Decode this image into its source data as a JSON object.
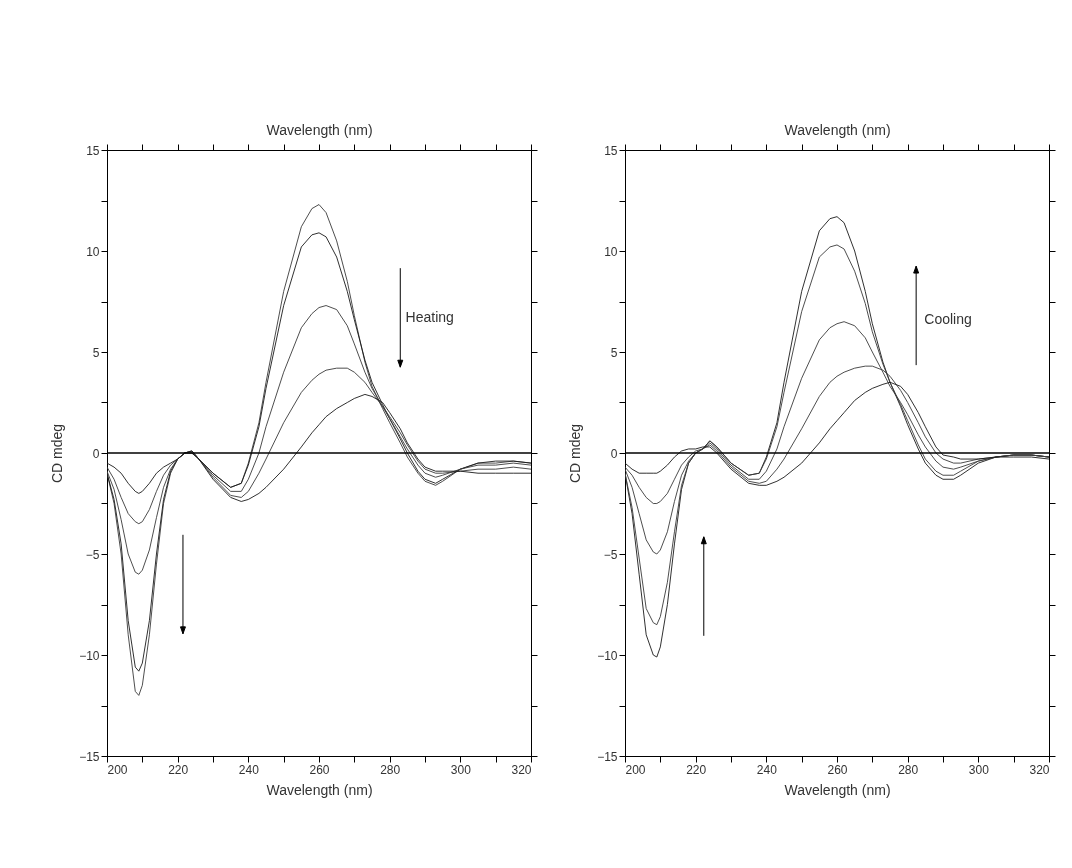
{
  "chart_data": [
    {
      "type": "line",
      "xlabel": "Wavelength (nm)",
      "x2label": "Wavelength (nm)",
      "ylabel": "CD mdeg",
      "xlim": [
        200,
        320
      ],
      "ylim": [
        -15,
        15
      ],
      "xticks": [
        200,
        {
          "value": 210,
          "label": null
        },
        220,
        {
          "value": 230,
          "label": null
        },
        240,
        {
          "value": 250,
          "label": null
        },
        260,
        {
          "value": 270,
          "label": null
        },
        280,
        {
          "value": 290,
          "label": null
        },
        300,
        {
          "value": 310,
          "label": null
        },
        320
      ],
      "yticks": [
        -15,
        {
          "value": -12.5,
          "label": null
        },
        -10,
        {
          "value": -7.5,
          "label": null
        },
        -5,
        {
          "value": -2.5,
          "label": null
        },
        0,
        {
          "value": 2.5,
          "label": null
        },
        5,
        {
          "value": 7.5,
          "label": null
        },
        10,
        {
          "value": 12.5,
          "label": null
        },
        15
      ],
      "x": [
        200,
        202,
        204,
        206,
        208,
        209,
        210,
        212,
        214,
        216,
        218,
        220,
        222,
        224,
        226,
        230,
        235,
        238,
        240,
        243,
        245,
        250,
        255,
        258,
        260,
        262,
        265,
        268,
        270,
        273,
        275,
        278,
        280,
        283,
        285,
        288,
        290,
        293,
        295,
        300,
        305,
        310,
        315,
        320
      ],
      "series": [
        {
          "color": "#3a3a3a",
          "values": [
            -1,
            -2.5,
            -5,
            -9,
            -11.8,
            -12,
            -11.5,
            -9,
            -5.5,
            -2.5,
            -1,
            -0.3,
            0,
            0,
            -0.3,
            -1,
            -1.7,
            -1.5,
            -0.5,
            1.5,
            3.5,
            8,
            11.2,
            12.1,
            12.3,
            11.9,
            10.5,
            8.5,
            6.8,
            4.5,
            3.3,
            2.2,
            1.5,
            0.5,
            -0.2,
            -1,
            -1.4,
            -1.6,
            -1.4,
            -0.8,
            -0.5,
            -0.5,
            -0.4,
            -0.5
          ]
        },
        {
          "color": "#1a1a1a",
          "values": [
            -1,
            -2.3,
            -4.5,
            -8.3,
            -10.6,
            -10.8,
            -10.4,
            -8.3,
            -5,
            -2.3,
            -0.9,
            -0.3,
            0,
            0,
            -0.3,
            -1,
            -1.7,
            -1.5,
            -0.6,
            1.3,
            3.2,
            7.3,
            10.2,
            10.8,
            10.9,
            10.7,
            9.7,
            8,
            6.6,
            4.6,
            3.5,
            2.4,
            1.7,
            0.7,
            0,
            -0.9,
            -1.3,
            -1.5,
            -1.3,
            -0.8,
            -0.5,
            -0.4,
            -0.4,
            -0.5
          ]
        },
        {
          "color": "#3a3a3a",
          "values": [
            -0.9,
            -1.8,
            -3.3,
            -5,
            -5.9,
            -6,
            -5.8,
            -4.8,
            -3.2,
            -1.7,
            -0.8,
            -0.3,
            0,
            0.1,
            -0.3,
            -1.1,
            -1.9,
            -1.9,
            -1.3,
            0,
            1.3,
            4,
            6.2,
            6.9,
            7.2,
            7.3,
            7.1,
            6.3,
            5.4,
            4,
            3.2,
            2.3,
            1.7,
            0.8,
            0.2,
            -0.6,
            -1,
            -1.2,
            -1.1,
            -0.8,
            -0.6,
            -0.6,
            -0.5,
            -0.6
          ]
        },
        {
          "color": "#3a3a3a",
          "values": [
            -0.7,
            -1.3,
            -2.2,
            -3,
            -3.4,
            -3.5,
            -3.4,
            -2.8,
            -1.9,
            -1.1,
            -0.6,
            -0.3,
            0,
            0.1,
            -0.3,
            -1.2,
            -2.1,
            -2.2,
            -1.9,
            -1,
            -0.3,
            1.5,
            3,
            3.6,
            3.9,
            4.1,
            4.2,
            4.2,
            4,
            3.5,
            3,
            2.3,
            1.8,
            1,
            0.4,
            -0.4,
            -0.8,
            -1,
            -1,
            -0.9,
            -0.8,
            -0.8,
            -0.7,
            -0.8
          ]
        },
        {
          "color": "#1a1a1a",
          "values": [
            -0.5,
            -0.7,
            -1,
            -1.5,
            -1.9,
            -2,
            -1.9,
            -1.5,
            -1,
            -0.7,
            -0.5,
            -0.3,
            0,
            0.1,
            -0.3,
            -1.3,
            -2.2,
            -2.4,
            -2.3,
            -2,
            -1.7,
            -0.8,
            0.3,
            1,
            1.4,
            1.8,
            2.2,
            2.5,
            2.7,
            2.9,
            2.8,
            2.5,
            2,
            1.2,
            0.5,
            -0.3,
            -0.7,
            -0.9,
            -0.9,
            -0.9,
            -1,
            -1,
            -1,
            -1
          ]
        }
      ],
      "ref_lines": [
        {
          "axis": "y",
          "value": 0,
          "color": "#000000"
        }
      ],
      "annotations": [
        "Heating"
      ]
    },
    {
      "type": "line",
      "xlabel": "Wavelength (nm)",
      "x2label": "Wavelength (nm)",
      "ylabel": "CD mdeg",
      "xlim": [
        200,
        320
      ],
      "ylim": [
        -15,
        15
      ],
      "xticks": [
        200,
        {
          "value": 210,
          "label": null
        },
        220,
        {
          "value": 230,
          "label": null
        },
        240,
        {
          "value": 250,
          "label": null
        },
        260,
        {
          "value": 270,
          "label": null
        },
        280,
        {
          "value": 290,
          "label": null
        },
        300,
        {
          "value": 310,
          "label": null
        },
        320
      ],
      "yticks": [
        -15,
        {
          "value": -12.5,
          "label": null
        },
        -10,
        {
          "value": -7.5,
          "label": null
        },
        -5,
        {
          "value": -2.5,
          "label": null
        },
        0,
        {
          "value": 2.5,
          "label": null
        },
        5,
        {
          "value": 7.5,
          "label": null
        },
        10,
        {
          "value": 12.5,
          "label": null
        },
        15
      ],
      "x": [
        200,
        202,
        204,
        206,
        208,
        209,
        210,
        212,
        214,
        216,
        218,
        220,
        222,
        224,
        226,
        230,
        235,
        238,
        240,
        243,
        245,
        250,
        255,
        258,
        260,
        262,
        265,
        268,
        270,
        273,
        275,
        278,
        280,
        283,
        285,
        288,
        290,
        293,
        295,
        300,
        305,
        310,
        315,
        320
      ],
      "series": [
        {
          "color": "#1a1a1a",
          "values": [
            -1,
            -3,
            -6,
            -9,
            -10,
            -10.1,
            -9.6,
            -7.5,
            -4.5,
            -1.8,
            -0.5,
            0,
            0.2,
            0.6,
            0.3,
            -0.5,
            -1.1,
            -1,
            -0.2,
            1.5,
            3.5,
            8,
            11,
            11.6,
            11.7,
            11.4,
            10,
            8,
            6.4,
            4.5,
            3.5,
            2.3,
            1.4,
            0.2,
            -0.5,
            -1.1,
            -1.3,
            -1.3,
            -1.1,
            -0.5,
            -0.2,
            -0.1,
            -0.1,
            -0.2
          ]
        },
        {
          "color": "#3a3a3a",
          "values": [
            -1,
            -2.7,
            -5.2,
            -7.7,
            -8.4,
            -8.5,
            -8.1,
            -6.4,
            -3.9,
            -1.6,
            -0.5,
            0,
            0.2,
            0.6,
            0.3,
            -0.5,
            -1.1,
            -1,
            -0.3,
            1.3,
            3,
            7,
            9.7,
            10.2,
            10.3,
            10.1,
            9,
            7.4,
            6,
            4.4,
            3.5,
            2.4,
            1.6,
            0.4,
            -0.3,
            -0.9,
            -1.1,
            -1.1,
            -0.9,
            -0.4,
            -0.2,
            -0.1,
            -0.1,
            -0.2
          ]
        },
        {
          "color": "#3a3a3a",
          "values": [
            -0.8,
            -1.7,
            -3,
            -4.3,
            -4.9,
            -5,
            -4.8,
            -3.9,
            -2.4,
            -1.1,
            -0.4,
            0,
            0.2,
            0.5,
            0.2,
            -0.6,
            -1.3,
            -1.3,
            -0.9,
            0.2,
            1.3,
            3.7,
            5.6,
            6.2,
            6.4,
            6.5,
            6.3,
            5.7,
            5,
            4,
            3.3,
            2.5,
            1.9,
            0.9,
            0.3,
            -0.4,
            -0.7,
            -0.8,
            -0.7,
            -0.4,
            -0.2,
            -0.1,
            -0.1,
            -0.2
          ]
        },
        {
          "color": "#3a3a3a",
          "values": [
            -0.7,
            -1.1,
            -1.7,
            -2.2,
            -2.5,
            -2.5,
            -2.4,
            -2,
            -1.3,
            -0.6,
            -0.2,
            0.1,
            0.2,
            0.4,
            0.1,
            -0.7,
            -1.4,
            -1.5,
            -1.4,
            -0.8,
            -0.3,
            1.2,
            2.8,
            3.5,
            3.8,
            4,
            4.2,
            4.3,
            4.3,
            4.1,
            3.8,
            3.1,
            2.5,
            1.5,
            0.8,
            0,
            -0.3,
            -0.5,
            -0.5,
            -0.3,
            -0.2,
            -0.1,
            -0.1,
            -0.2
          ]
        },
        {
          "color": "#1a1a1a",
          "values": [
            -0.5,
            -0.8,
            -1,
            -1,
            -1,
            -1,
            -0.9,
            -0.6,
            -0.2,
            0.1,
            0.2,
            0.2,
            0.3,
            0.3,
            0,
            -0.8,
            -1.5,
            -1.6,
            -1.6,
            -1.4,
            -1.2,
            -0.5,
            0.5,
            1.2,
            1.6,
            2,
            2.6,
            3,
            3.2,
            3.4,
            3.5,
            3.3,
            2.9,
            2,
            1.3,
            0.3,
            -0.1,
            -0.2,
            -0.3,
            -0.3,
            -0.2,
            -0.2,
            -0.2,
            -0.3
          ]
        }
      ],
      "ref_lines": [
        {
          "axis": "y",
          "value": 0,
          "color": "#000000"
        }
      ],
      "annotations": [
        "Cooling"
      ]
    }
  ]
}
